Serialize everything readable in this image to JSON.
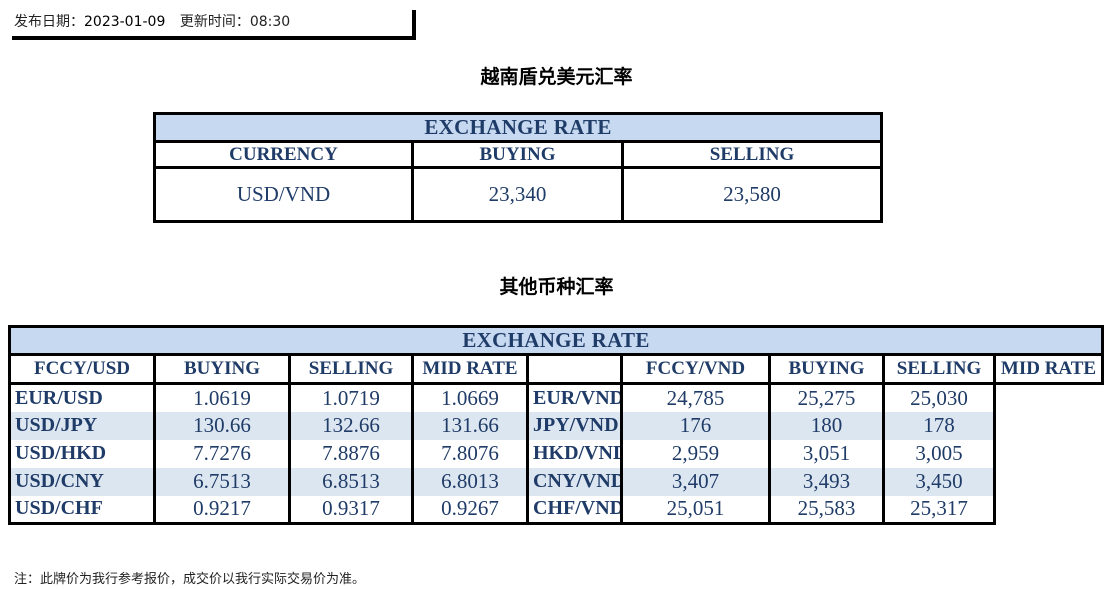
{
  "header": {
    "publish_label": "发布日期：",
    "publish_date": "2023-01-09",
    "update_label": "更新时间：",
    "update_time": "08:30"
  },
  "usd_section": {
    "title": "越南盾兑美元汇率",
    "table_title": "EXCHANGE RATE",
    "columns": [
      "CURRENCY",
      "BUYING",
      "SELLING"
    ],
    "row": {
      "currency": "USD/VND",
      "buying": "23,340",
      "selling": "23,580"
    }
  },
  "other_section": {
    "title": "其他币种汇率",
    "table_title": "EXCHANGE  RATE",
    "usd_columns": [
      "FCCY/USD",
      "BUYING",
      "SELLING",
      "MID RATE"
    ],
    "vnd_columns": [
      "FCCY/VND",
      "BUYING",
      "SELLING",
      "MID RATE"
    ],
    "rows": [
      {
        "usd_pair": "EUR/USD",
        "usd_buy": "1.0619",
        "usd_sell": "1.0719",
        "usd_mid": "1.0669",
        "vnd_pair": "EUR/VND",
        "vnd_buy": "24,785",
        "vnd_sell": "25,275",
        "vnd_mid": "25,030"
      },
      {
        "usd_pair": "USD/JPY",
        "usd_buy": "130.66",
        "usd_sell": "132.66",
        "usd_mid": "131.66",
        "vnd_pair": "JPY/VND",
        "vnd_buy": "176",
        "vnd_sell": "180",
        "vnd_mid": "178"
      },
      {
        "usd_pair": "USD/HKD",
        "usd_buy": "7.7276",
        "usd_sell": "7.8876",
        "usd_mid": "7.8076",
        "vnd_pair": "HKD/VND",
        "vnd_buy": "2,959",
        "vnd_sell": "3,051",
        "vnd_mid": "3,005"
      },
      {
        "usd_pair": "USD/CNY",
        "usd_buy": "6.7513",
        "usd_sell": "6.8513",
        "usd_mid": "6.8013",
        "vnd_pair": "CNY/VND",
        "vnd_buy": "3,407",
        "vnd_sell": "3,493",
        "vnd_mid": "3,450"
      },
      {
        "usd_pair": "USD/CHF",
        "usd_buy": "0.9217",
        "usd_sell": "0.9317",
        "usd_mid": "0.9267",
        "vnd_pair": "CHF/VND",
        "vnd_buy": "25,051",
        "vnd_sell": "25,583",
        "vnd_mid": "25,317"
      }
    ]
  },
  "footer": {
    "note": "注：此牌价为我行参考报价，成交价以我行实际交易价为准。"
  },
  "colors": {
    "header_bg": "#c6d9f0",
    "alt_row_bg": "#dce6f1",
    "text": "#1f3b67"
  }
}
